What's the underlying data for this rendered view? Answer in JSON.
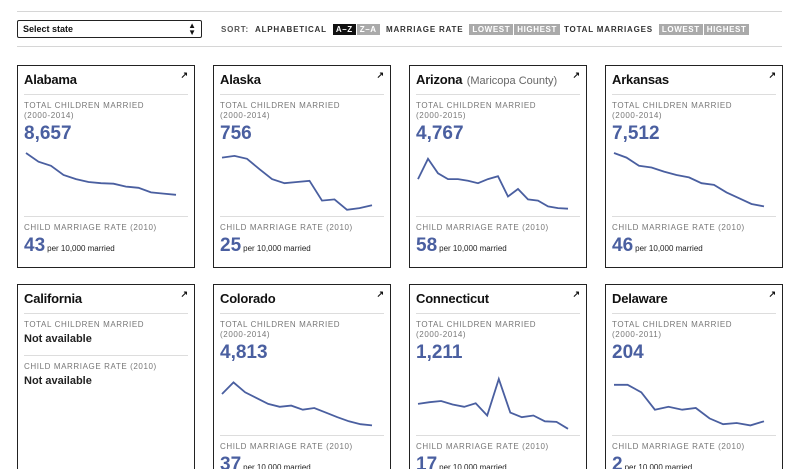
{
  "controls": {
    "select_label": "Select state",
    "sort_label": "SORT:",
    "alphabetical_label": "ALPHABETICAL",
    "az": "A–Z",
    "za": "Z–A",
    "marriage_rate_label": "MARRIAGE RATE",
    "total_marriages_label": "TOTAL MARRIAGES",
    "lowest": "LOWEST",
    "highest": "HIGHEST"
  },
  "common": {
    "total_label": "TOTAL CHILDREN MARRIED",
    "rate_label": "CHILD MARRIAGE RATE (2010)",
    "per_text": "per 10,000 married",
    "not_available": "Not available"
  },
  "cards": [
    {
      "name": "Alabama",
      "subtitle": "",
      "years": "(2000-2014)",
      "total": "8,657",
      "rate": "43",
      "trend": [
        1.0,
        0.85,
        0.78,
        0.62,
        0.55,
        0.5,
        0.48,
        0.47,
        0.42,
        0.4,
        0.32,
        0.3,
        0.28
      ]
    },
    {
      "name": "Alaska",
      "subtitle": "",
      "years": "(2000-2014)",
      "total": "756",
      "rate": "25",
      "trend": [
        0.92,
        0.95,
        0.9,
        0.72,
        0.55,
        0.48,
        0.5,
        0.52,
        0.18,
        0.2,
        0.02,
        0.05,
        0.1
      ]
    },
    {
      "name": "Arizona",
      "subtitle": "(Maricopa County)",
      "years": "(2000-2015)",
      "total": "4,767",
      "rate": "58",
      "trend": [
        0.55,
        0.9,
        0.65,
        0.55,
        0.55,
        0.52,
        0.48,
        0.55,
        0.6,
        0.25,
        0.38,
        0.2,
        0.18,
        0.08,
        0.05,
        0.04
      ]
    },
    {
      "name": "Arkansas",
      "subtitle": "",
      "years": "(2000-2014)",
      "total": "7,512",
      "rate": "46",
      "trend": [
        1.0,
        0.92,
        0.78,
        0.75,
        0.68,
        0.62,
        0.58,
        0.48,
        0.45,
        0.32,
        0.22,
        0.12,
        0.08
      ]
    },
    {
      "name": "California",
      "subtitle": "",
      "years": "",
      "total": "",
      "rate": "",
      "unavailable": true,
      "trend": []
    },
    {
      "name": "Colorado",
      "subtitle": "",
      "years": "(2000-2014)",
      "total": "4,813",
      "rate": "37",
      "trend": [
        0.62,
        0.82,
        0.65,
        0.55,
        0.45,
        0.4,
        0.42,
        0.35,
        0.38,
        0.3,
        0.22,
        0.15,
        0.1,
        0.08
      ]
    },
    {
      "name": "Connecticut",
      "subtitle": "",
      "years": "(2000-2014)",
      "total": "1,211",
      "rate": "17",
      "trend": [
        0.45,
        0.48,
        0.5,
        0.44,
        0.4,
        0.46,
        0.25,
        0.88,
        0.3,
        0.22,
        0.25,
        0.15,
        0.14,
        0.02
      ]
    },
    {
      "name": "Delaware",
      "subtitle": "",
      "years": "(2000-2011)",
      "total": "204",
      "rate": "2",
      "trend": [
        0.78,
        0.78,
        0.65,
        0.35,
        0.4,
        0.35,
        0.38,
        0.2,
        0.1,
        0.12,
        0.08,
        0.15
      ]
    }
  ]
}
